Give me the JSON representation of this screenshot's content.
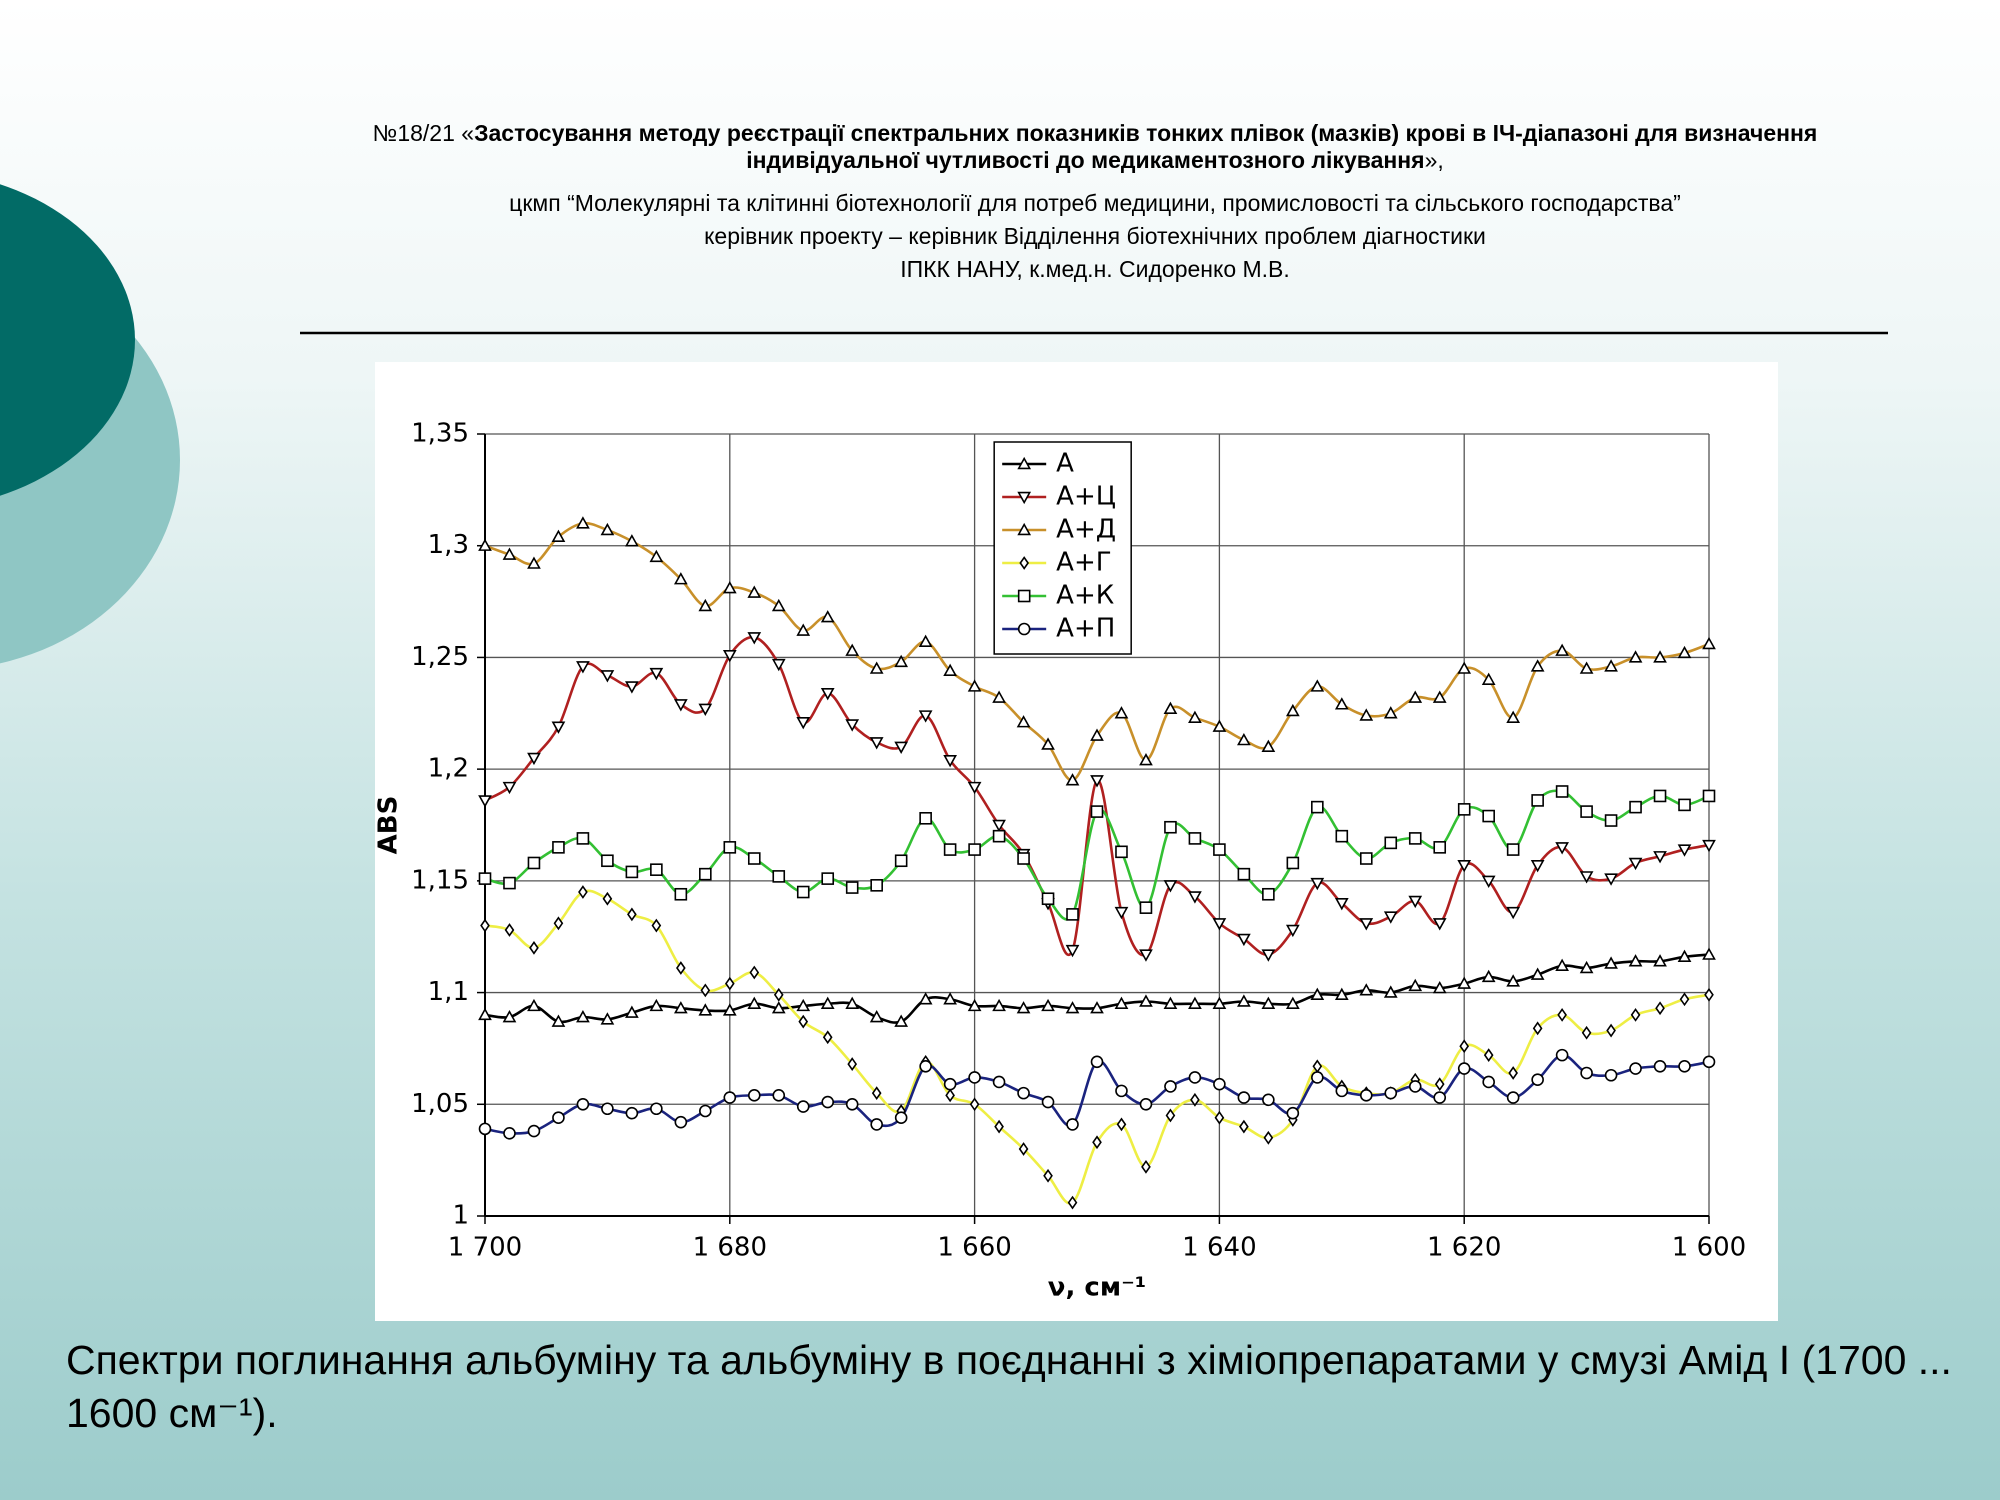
{
  "header": {
    "number": "№18/21 «",
    "project": "Застосування методу реєстрації спектральних показників тонких плівок (мазків) крові в ІЧ-діапазоні для визначення індивідуальної чутливості до медикаментозного лікування",
    "close": "»,",
    "center": "цкмп “Молекулярні та клітинні біотехнології для потреб медицини, промисловості та сільського господарства”",
    "leader": "керівник проекту – керівник Відділення біотехнічних проблем діагностики",
    "author": "ІПКК НАНУ, к.мед.н. Сидоренко М.В."
  },
  "caption": "Спектри поглинання альбуміну та альбуміну в поєднанні з хіміопрепаратами у смузі Амід І (1700 ... 1600 см⁻¹).",
  "chart_data": {
    "type": "line",
    "x_label": "ν, см⁻¹",
    "y_label": "ABS",
    "grid": true,
    "legend": "upper center",
    "xlim": [
      1700,
      1600
    ],
    "xticks": [
      {
        "value": 1700,
        "label": "1 700"
      },
      {
        "value": 1680,
        "label": "1 680"
      },
      {
        "value": 1660,
        "label": "1 660"
      },
      {
        "value": 1640,
        "label": "1 640"
      },
      {
        "value": 1620,
        "label": "1 620"
      },
      {
        "value": 1600,
        "label": "1 600"
      }
    ],
    "ylim": [
      1,
      1.35
    ],
    "yticks": [
      1,
      {
        "value": 1.05,
        "label": "1,05"
      },
      {
        "value": 1.1,
        "label": "1,1"
      },
      {
        "value": 1.15,
        "label": "1,15"
      },
      {
        "value": 1.2,
        "label": "1,2"
      },
      {
        "value": 1.25,
        "label": "1,25"
      },
      {
        "value": 1.3,
        "label": "1,3"
      },
      {
        "value": 1.35,
        "label": "1,35"
      }
    ],
    "x": [
      1700,
      1698,
      1696,
      1694,
      1692,
      1690,
      1688,
      1686,
      1684,
      1682,
      1680,
      1678,
      1676,
      1674,
      1672,
      1670,
      1668,
      1666,
      1664,
      1662,
      1660,
      1658,
      1656,
      1654,
      1652,
      1650,
      1648,
      1646,
      1644,
      1642,
      1640,
      1638,
      1636,
      1634,
      1632,
      1630,
      1628,
      1626,
      1624,
      1622,
      1620,
      1618,
      1616,
      1614,
      1612,
      1610,
      1608,
      1606,
      1604,
      1602,
      1600
    ],
    "series": [
      {
        "name": "А",
        "color": "#000000",
        "marker": "triangle-up",
        "values": [
          1.09,
          1.089,
          1.094,
          1.087,
          1.089,
          1.088,
          1.091,
          1.094,
          1.093,
          1.092,
          1.092,
          1.095,
          1.093,
          1.094,
          1.095,
          1.095,
          1.089,
          1.087,
          1.097,
          1.097,
          1.094,
          1.094,
          1.093,
          1.094,
          1.093,
          1.093,
          1.095,
          1.096,
          1.095,
          1.095,
          1.095,
          1.096,
          1.095,
          1.095,
          1.099,
          1.099,
          1.101,
          1.1,
          1.103,
          1.102,
          1.104,
          1.107,
          1.105,
          1.108,
          1.112,
          1.111,
          1.113,
          1.114,
          1.114,
          1.116,
          1.117
        ]
      },
      {
        "name": "А+Ц",
        "color": "#b02020",
        "marker": "triangle-down",
        "values": [
          1.186,
          1.192,
          1.205,
          1.219,
          1.246,
          1.242,
          1.237,
          1.243,
          1.229,
          1.227,
          1.251,
          1.259,
          1.247,
          1.221,
          1.234,
          1.22,
          1.212,
          1.21,
          1.224,
          1.204,
          1.192,
          1.175,
          1.162,
          1.14,
          1.119,
          1.195,
          1.136,
          1.117,
          1.148,
          1.143,
          1.131,
          1.124,
          1.117,
          1.128,
          1.149,
          1.14,
          1.131,
          1.134,
          1.141,
          1.131,
          1.157,
          1.15,
          1.136,
          1.157,
          1.165,
          1.152,
          1.151,
          1.158,
          1.161,
          1.164,
          1.166
        ]
      },
      {
        "name": "А+Д",
        "color": "#c8902a",
        "marker": "triangle-up",
        "values": [
          1.3,
          1.296,
          1.292,
          1.304,
          1.31,
          1.307,
          1.302,
          1.295,
          1.285,
          1.273,
          1.281,
          1.279,
          1.273,
          1.262,
          1.268,
          1.253,
          1.245,
          1.248,
          1.257,
          1.244,
          1.237,
          1.232,
          1.221,
          1.211,
          1.195,
          1.215,
          1.225,
          1.204,
          1.227,
          1.223,
          1.219,
          1.213,
          1.21,
          1.226,
          1.237,
          1.229,
          1.224,
          1.225,
          1.232,
          1.232,
          1.245,
          1.24,
          1.223,
          1.246,
          1.253,
          1.245,
          1.246,
          1.25,
          1.25,
          1.252,
          1.256
        ]
      },
      {
        "name": "А+Г",
        "color": "#eeee44",
        "marker": "diamond",
        "values": [
          1.13,
          1.128,
          1.12,
          1.131,
          1.145,
          1.142,
          1.135,
          1.13,
          1.111,
          1.101,
          1.104,
          1.109,
          1.099,
          1.087,
          1.08,
          1.068,
          1.055,
          1.047,
          1.069,
          1.054,
          1.05,
          1.04,
          1.03,
          1.018,
          1.006,
          1.033,
          1.041,
          1.022,
          1.045,
          1.052,
          1.044,
          1.04,
          1.035,
          1.043,
          1.067,
          1.058,
          1.055,
          1.055,
          1.061,
          1.059,
          1.076,
          1.072,
          1.064,
          1.084,
          1.09,
          1.082,
          1.083,
          1.09,
          1.093,
          1.097,
          1.099
        ]
      },
      {
        "name": "А+К",
        "color": "#33c033",
        "marker": "square",
        "values": [
          1.151,
          1.149,
          1.158,
          1.165,
          1.169,
          1.159,
          1.154,
          1.155,
          1.144,
          1.153,
          1.165,
          1.16,
          1.152,
          1.145,
          1.151,
          1.147,
          1.148,
          1.159,
          1.178,
          1.164,
          1.164,
          1.17,
          1.16,
          1.142,
          1.135,
          1.181,
          1.163,
          1.138,
          1.174,
          1.169,
          1.164,
          1.153,
          1.144,
          1.158,
          1.183,
          1.17,
          1.16,
          1.167,
          1.169,
          1.165,
          1.182,
          1.179,
          1.164,
          1.186,
          1.19,
          1.181,
          1.177,
          1.183,
          1.188,
          1.184,
          1.188
        ]
      },
      {
        "name": "А+П",
        "color": "#1a237e",
        "marker": "circle",
        "values": [
          1.039,
          1.037,
          1.038,
          1.044,
          1.05,
          1.048,
          1.046,
          1.048,
          1.042,
          1.047,
          1.053,
          1.054,
          1.054,
          1.049,
          1.051,
          1.05,
          1.041,
          1.044,
          1.067,
          1.059,
          1.062,
          1.06,
          1.055,
          1.051,
          1.041,
          1.069,
          1.056,
          1.05,
          1.058,
          1.062,
          1.059,
          1.053,
          1.052,
          1.046,
          1.062,
          1.056,
          1.054,
          1.055,
          1.058,
          1.053,
          1.066,
          1.06,
          1.053,
          1.061,
          1.072,
          1.064,
          1.063,
          1.066,
          1.067,
          1.067,
          1.069
        ]
      }
    ]
  }
}
